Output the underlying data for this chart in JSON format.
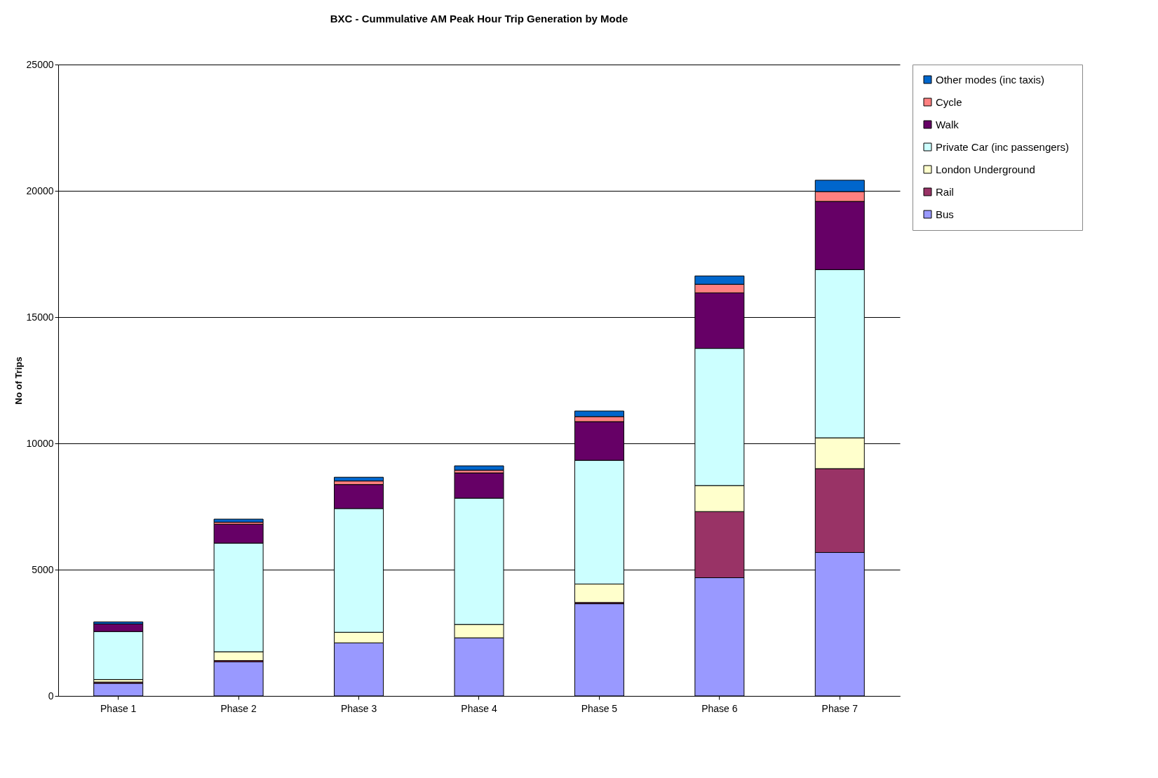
{
  "chart_data": {
    "type": "bar",
    "stacked": true,
    "title": "BXC - Cummulative AM Peak Hour Trip Generation by Mode",
    "ylabel": "No of Trips",
    "categories": [
      "Phase 1",
      "Phase 2",
      "Phase 3",
      "Phase 4",
      "Phase 5",
      "Phase 6",
      "Phase 7"
    ],
    "series": [
      {
        "name": "Bus",
        "color": "#9999ff",
        "values": [
          500,
          1350,
          2100,
          2300,
          3650,
          4680,
          5680
        ]
      },
      {
        "name": "Rail",
        "color": "#993366",
        "values": [
          50,
          50,
          null,
          null,
          50,
          2620,
          3320
        ]
      },
      {
        "name": "London Underground",
        "color": "#ffffcc",
        "values": [
          100,
          350,
          420,
          530,
          730,
          1030,
          1220
        ]
      },
      {
        "name": "Private Car (inc  passengers)",
        "color": "#ccffff",
        "values": [
          1900,
          4300,
          4900,
          5000,
          4900,
          5430,
          6660
        ]
      },
      {
        "name": "Walk",
        "color": "#660066",
        "values": [
          300,
          750,
          950,
          1000,
          1530,
          2200,
          2700
        ]
      },
      {
        "name": "Cycle",
        "color": "#ff8080",
        "values": [
          null,
          80,
          140,
          110,
          200,
          340,
          390
        ]
      },
      {
        "name": "Other modes (inc taxis)",
        "color": "#0066cc",
        "values": [
          80,
          120,
          150,
          170,
          220,
          330,
          450
        ]
      }
    ],
    "ylim": [
      0,
      25000
    ],
    "yticks": [
      0,
      5000,
      10000,
      15000,
      20000,
      25000
    ],
    "grid": "y",
    "legend": "right"
  }
}
